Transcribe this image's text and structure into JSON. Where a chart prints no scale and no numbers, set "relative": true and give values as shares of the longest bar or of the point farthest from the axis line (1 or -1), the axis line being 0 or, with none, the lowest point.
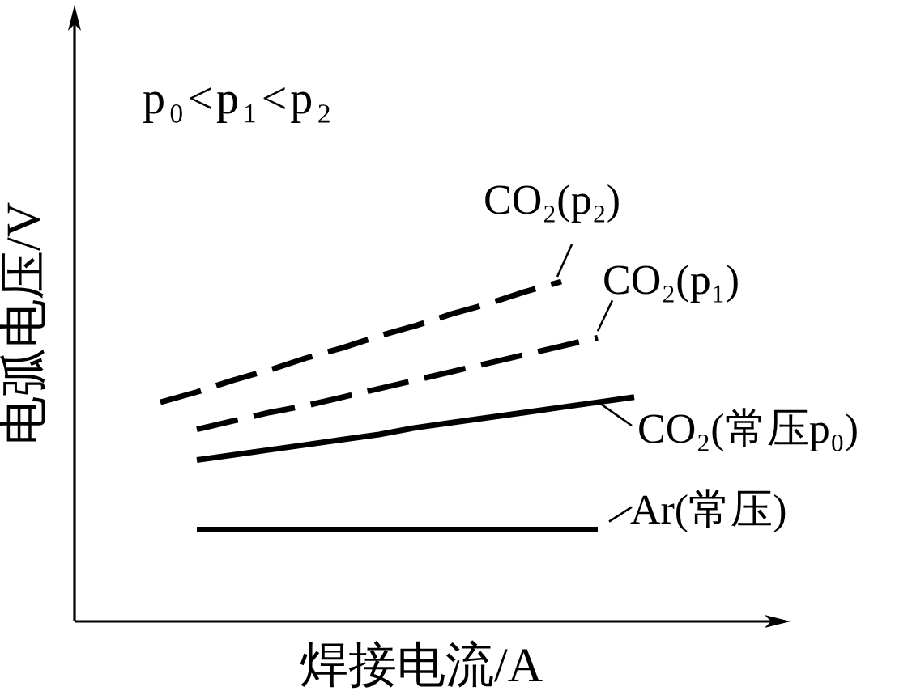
{
  "chart_data": {
    "type": "line",
    "relative": true,
    "xlabel": "焊接电流/A",
    "ylabel": "电弧电压/V",
    "annotations": [
      "p₀<p₁<p₂"
    ],
    "legend": "right",
    "categories": [
      null,
      null,
      null,
      null,
      null,
      null,
      null,
      null,
      null,
      null,
      null,
      null,
      null,
      null
    ],
    "series": [
      {
        "name": "CO₂(p₂)",
        "color": "#000000",
        "line_style": "dashed",
        "values": [
          0.645,
          0.675,
          0.71,
          0.74,
          0.775,
          0.805,
          0.84,
          0.87,
          0.905,
          0.935,
          0.97,
          1,
          null,
          null
        ]
      },
      {
        "name": "CO₂(p₁)",
        "color": "#000000",
        "line_style": "dashed",
        "values": [
          null,
          0.565,
          0.59,
          0.615,
          0.635,
          0.66,
          0.685,
          0.71,
          0.735,
          0.76,
          0.785,
          0.81,
          0.835,
          null
        ]
      },
      {
        "name": "CO₂(常压p₀)",
        "color": "#000000",
        "line_style": "solid",
        "values": [
          null,
          0.475,
          0.49,
          0.505,
          0.52,
          0.535,
          0.55,
          0.57,
          0.585,
          0.6,
          0.615,
          0.63,
          0.645,
          0.66
        ]
      },
      {
        "name": "Ar(常压)",
        "color": "#000000",
        "line_style": "solid",
        "values": [
          null,
          0.27,
          0.27,
          0.27,
          0.27,
          0.27,
          0.27,
          0.27,
          0.27,
          0.27,
          0.27,
          0.27,
          0.27,
          null
        ]
      }
    ]
  }
}
